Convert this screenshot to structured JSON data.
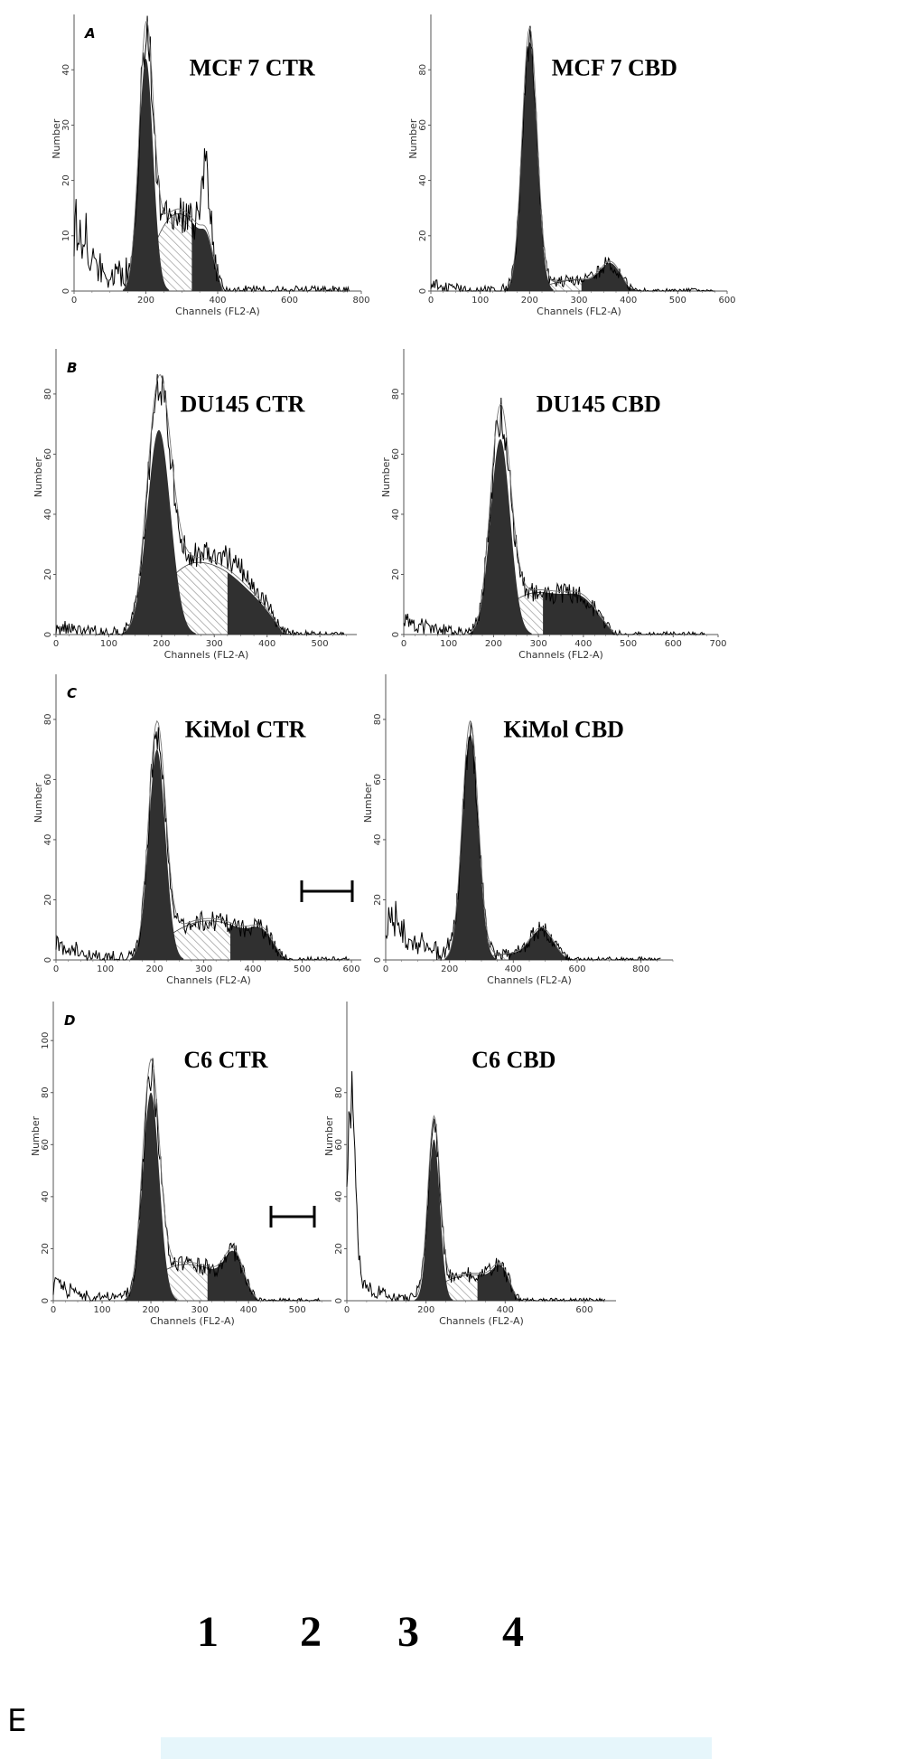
{
  "colors": {
    "g1_fill": "#303030",
    "sphase_hatch": "#9a9a9a",
    "trace": "#000000",
    "gel_background": "#e6f6fb"
  },
  "chart_data": [
    {
      "type": "area",
      "id": "panel-a-ctr",
      "letter": "A",
      "title": "MCF 7 CTR",
      "xlabel": "Channels (FL2-A)",
      "ylabel": "Number",
      "xlim": [
        0,
        800
      ],
      "ylim": [
        0,
        50
      ],
      "xticks": [
        0,
        200,
        400,
        600,
        800
      ],
      "yticks": [
        0,
        10,
        20,
        30,
        40
      ],
      "g1": {
        "center": 200,
        "sd": 20,
        "height": 42
      },
      "sphase": {
        "start": 180,
        "end": 415,
        "peak_x": 290,
        "height": 14
      },
      "g2": {
        "center": 370,
        "sd": 14,
        "height": 3
      },
      "outline_extra": [
        {
          "center": 365,
          "sd": 12,
          "height": 12
        }
      ],
      "debris_height": 12
    },
    {
      "type": "area",
      "id": "panel-a-cbd",
      "letter": "",
      "title": "MCF 7 CBD",
      "xlabel": "Channels (FL2-A)",
      "ylabel": "Number",
      "xlim": [
        0,
        600
      ],
      "ylim": [
        0,
        100
      ],
      "xticks": [
        0,
        100,
        200,
        300,
        400,
        500,
        600
      ],
      "yticks": [
        0,
        20,
        40,
        60,
        80
      ],
      "g1": {
        "center": 200,
        "sd": 15,
        "height": 90
      },
      "sphase": {
        "start": 200,
        "end": 400,
        "peak_x": 300,
        "height": 4
      },
      "g2": {
        "center": 365,
        "sd": 20,
        "height": 8
      },
      "outline_extra": [],
      "debris_height": 3
    },
    {
      "type": "area",
      "id": "panel-b-ctr",
      "letter": "B",
      "title": "DU145 CTR",
      "xlabel": "Channels (FL2-A)",
      "ylabel": "Number",
      "xlim": [
        0,
        570
      ],
      "ylim": [
        0,
        95
      ],
      "xticks": [
        0,
        100,
        200,
        300,
        400,
        500
      ],
      "yticks": [
        0,
        20,
        40,
        60,
        80
      ],
      "g1": {
        "center": 195,
        "sd": 22,
        "height": 68
      },
      "sphase": {
        "start": 150,
        "end": 430,
        "peak_x": 270,
        "height": 24
      },
      "g2": {
        "center": 400,
        "sd": 25,
        "height": 1
      },
      "outline_extra": [
        {
          "center": 330,
          "sd": 50,
          "height": 5
        }
      ],
      "debris_height": 4
    },
    {
      "type": "area",
      "id": "panel-b-cbd",
      "letter": "",
      "title": "DU145 CBD",
      "xlabel": "Channels (FL2-A)",
      "ylabel": "Number",
      "xlim": [
        0,
        700
      ],
      "ylim": [
        0,
        95
      ],
      "xticks": [
        0,
        100,
        200,
        300,
        400,
        500,
        600,
        700
      ],
      "yticks": [
        0,
        20,
        40,
        60,
        80
      ],
      "g1": {
        "center": 215,
        "sd": 22,
        "height": 65
      },
      "sphase": {
        "start": 170,
        "end": 470,
        "peak_x": 300,
        "height": 14
      },
      "g2": {
        "center": 400,
        "sd": 30,
        "height": 4
      },
      "outline_extra": [],
      "debris_height": 5
    },
    {
      "type": "area",
      "id": "panel-c-ctr",
      "letter": "C",
      "title": "KiMol CTR",
      "xlabel": "Channels (FL2-A)",
      "ylabel": "Number",
      "xlim": [
        0,
        620
      ],
      "ylim": [
        0,
        95
      ],
      "xticks": [
        0,
        100,
        200,
        300,
        400,
        500,
        600
      ],
      "yticks": [
        0,
        20,
        40,
        60,
        80
      ],
      "g1": {
        "center": 205,
        "sd": 17,
        "height": 70
      },
      "sphase": {
        "start": 170,
        "end": 460,
        "peak_x": 310,
        "height": 13
      },
      "g2": {
        "center": 420,
        "sd": 22,
        "height": 5
      },
      "outline_extra": [],
      "debris_height": 6
    },
    {
      "type": "area",
      "id": "panel-c-cbd",
      "letter": "",
      "title": "KiMol CBD",
      "xlabel": "Channels (FL2-A)",
      "ylabel": "Number",
      "xlim": [
        0,
        900
      ],
      "ylim": [
        0,
        95
      ],
      "xticks": [
        0,
        200,
        400,
        600,
        800
      ],
      "yticks": [
        0,
        20,
        40,
        60,
        80
      ],
      "g1": {
        "center": 265,
        "sd": 25,
        "height": 75
      },
      "sphase": {
        "start": 270,
        "end": 560,
        "peak_x": 400,
        "height": 2
      },
      "g2": {
        "center": 490,
        "sd": 35,
        "height": 9
      },
      "outline_extra": [],
      "debris_height": 18
    },
    {
      "type": "area",
      "id": "panel-d-ctr",
      "letter": "D",
      "title": "C6 CTR",
      "xlabel": "Channels (FL2-A)",
      "ylabel": "Number",
      "xlim": [
        0,
        570
      ],
      "ylim": [
        0,
        115
      ],
      "xticks": [
        0,
        100,
        200,
        300,
        400,
        500
      ],
      "yticks": [
        0,
        20,
        40,
        60,
        80,
        100
      ],
      "g1": {
        "center": 200,
        "sd": 17,
        "height": 80
      },
      "sphase": {
        "start": 160,
        "end": 420,
        "peak_x": 270,
        "height": 14
      },
      "g2": {
        "center": 370,
        "sd": 18,
        "height": 12
      },
      "outline_extra": [],
      "debris_height": 8
    },
    {
      "type": "area",
      "id": "panel-d-cbd",
      "letter": "",
      "title": "C6 CBD",
      "xlabel": "Channels (FL2-A)",
      "ylabel": "Number",
      "xlim": [
        0,
        680
      ],
      "ylim": [
        0,
        115
      ],
      "xticks": [
        0,
        200,
        400,
        600
      ],
      "yticks": [
        0,
        20,
        40,
        60,
        80
      ],
      "g1": {
        "center": 220,
        "sd": 15,
        "height": 62
      },
      "sphase": {
        "start": 170,
        "end": 430,
        "peak_x": 320,
        "height": 10
      },
      "g2": {
        "center": 390,
        "sd": 20,
        "height": 8
      },
      "outline_extra": [],
      "debris_height": 10,
      "early_spike": {
        "center": 12,
        "height": 72
      }
    }
  ],
  "panel_e": {
    "letter": "E",
    "lanes": [
      "1",
      "2",
      "3",
      "4"
    ]
  }
}
